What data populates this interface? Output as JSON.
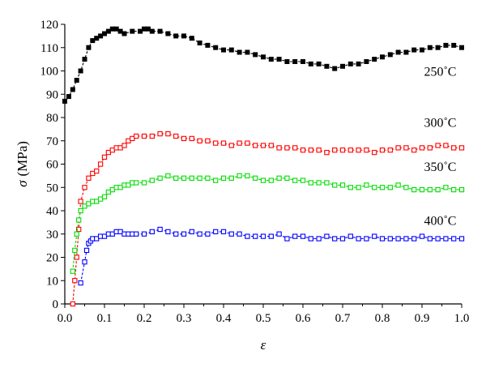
{
  "chart_data": {
    "type": "scatter",
    "title": "",
    "xlabel": "ε",
    "ylabel_symbol": "σ",
    "ylabel_unit": "(MPa)",
    "xlim": [
      0,
      1.0
    ],
    "ylim": [
      0,
      120
    ],
    "xticks": [
      "0.0",
      "0.1",
      "0.2",
      "0.3",
      "0.4",
      "0.5",
      "0.6",
      "0.7",
      "0.8",
      "0.9",
      "1.0"
    ],
    "yticks": [
      "0",
      "10",
      "20",
      "30",
      "40",
      "50",
      "60",
      "70",
      "80",
      "90",
      "100",
      "110",
      "120"
    ],
    "grid": false,
    "legend": "inline-right",
    "series": [
      {
        "name": "250˚C",
        "color": "#000000",
        "marker": "filled-square",
        "x": [
          0.0,
          0.01,
          0.02,
          0.03,
          0.04,
          0.05,
          0.06,
          0.07,
          0.08,
          0.09,
          0.1,
          0.11,
          0.12,
          0.13,
          0.14,
          0.15,
          0.17,
          0.19,
          0.2,
          0.21,
          0.22,
          0.24,
          0.26,
          0.28,
          0.3,
          0.32,
          0.34,
          0.36,
          0.38,
          0.4,
          0.42,
          0.44,
          0.46,
          0.48,
          0.5,
          0.52,
          0.54,
          0.56,
          0.58,
          0.6,
          0.62,
          0.64,
          0.66,
          0.68,
          0.7,
          0.72,
          0.74,
          0.76,
          0.78,
          0.8,
          0.82,
          0.84,
          0.86,
          0.88,
          0.9,
          0.92,
          0.94,
          0.96,
          0.98,
          1.0
        ],
        "y": [
          87,
          89,
          92,
          96,
          100,
          105,
          110,
          113,
          114,
          115,
          116,
          117,
          118,
          118,
          117,
          116,
          117,
          117,
          118,
          118,
          117,
          117,
          116,
          115,
          115,
          114,
          112,
          111,
          110,
          109,
          109,
          108,
          108,
          107,
          106,
          105,
          105,
          104,
          104,
          104,
          103,
          103,
          102,
          101,
          102,
          103,
          103,
          104,
          105,
          106,
          107,
          108,
          108,
          109,
          109,
          110,
          110,
          111,
          111,
          110
        ]
      },
      {
        "name": "300˚C",
        "color": "#ff0000",
        "marker": "open-square",
        "x": [
          0.02,
          0.025,
          0.03,
          0.035,
          0.04,
          0.05,
          0.06,
          0.07,
          0.08,
          0.09,
          0.1,
          0.11,
          0.12,
          0.13,
          0.14,
          0.15,
          0.16,
          0.17,
          0.18,
          0.2,
          0.22,
          0.24,
          0.26,
          0.28,
          0.3,
          0.32,
          0.34,
          0.36,
          0.38,
          0.4,
          0.42,
          0.44,
          0.46,
          0.48,
          0.5,
          0.52,
          0.54,
          0.56,
          0.58,
          0.6,
          0.62,
          0.64,
          0.66,
          0.68,
          0.7,
          0.72,
          0.74,
          0.76,
          0.78,
          0.8,
          0.82,
          0.84,
          0.86,
          0.88,
          0.9,
          0.92,
          0.94,
          0.96,
          0.98,
          1.0
        ],
        "y": [
          0,
          10,
          20,
          32,
          44,
          50,
          54,
          56,
          57,
          60,
          63,
          65,
          66,
          67,
          67,
          68,
          70,
          71,
          72,
          72,
          72,
          73,
          73,
          72,
          71,
          71,
          70,
          70,
          69,
          69,
          68,
          69,
          69,
          68,
          68,
          68,
          67,
          67,
          67,
          66,
          66,
          66,
          65,
          66,
          66,
          66,
          66,
          66,
          65,
          66,
          66,
          67,
          67,
          66,
          67,
          67,
          68,
          68,
          67,
          67
        ]
      },
      {
        "name": "350˚C",
        "color": "#00dd00",
        "marker": "open-square",
        "x": [
          0.02,
          0.025,
          0.03,
          0.035,
          0.04,
          0.05,
          0.06,
          0.07,
          0.08,
          0.09,
          0.1,
          0.11,
          0.12,
          0.13,
          0.14,
          0.15,
          0.16,
          0.17,
          0.18,
          0.2,
          0.22,
          0.24,
          0.26,
          0.28,
          0.3,
          0.32,
          0.34,
          0.36,
          0.38,
          0.4,
          0.42,
          0.44,
          0.46,
          0.48,
          0.5,
          0.52,
          0.54,
          0.56,
          0.58,
          0.6,
          0.62,
          0.64,
          0.66,
          0.68,
          0.7,
          0.72,
          0.74,
          0.76,
          0.78,
          0.8,
          0.82,
          0.84,
          0.86,
          0.88,
          0.9,
          0.92,
          0.94,
          0.96,
          0.98,
          1.0
        ],
        "y": [
          14,
          23,
          30,
          36,
          40,
          42,
          43,
          44,
          44,
          45,
          46,
          48,
          49,
          50,
          50,
          51,
          51,
          52,
          52,
          52,
          53,
          54,
          55,
          54,
          54,
          54,
          54,
          54,
          53,
          54,
          54,
          55,
          55,
          54,
          53,
          53,
          54,
          54,
          53,
          53,
          52,
          52,
          52,
          51,
          51,
          50,
          50,
          51,
          50,
          50,
          50,
          51,
          50,
          49,
          49,
          49,
          49,
          50,
          49,
          49
        ]
      },
      {
        "name": "400˚C",
        "color": "#0000ff",
        "marker": "open-square",
        "x": [
          0.04,
          0.05,
          0.055,
          0.06,
          0.065,
          0.07,
          0.08,
          0.09,
          0.1,
          0.11,
          0.12,
          0.13,
          0.14,
          0.15,
          0.16,
          0.17,
          0.18,
          0.2,
          0.22,
          0.24,
          0.26,
          0.28,
          0.3,
          0.32,
          0.34,
          0.36,
          0.38,
          0.4,
          0.42,
          0.44,
          0.46,
          0.48,
          0.5,
          0.52,
          0.54,
          0.56,
          0.58,
          0.6,
          0.62,
          0.64,
          0.66,
          0.68,
          0.7,
          0.72,
          0.74,
          0.76,
          0.78,
          0.8,
          0.82,
          0.84,
          0.86,
          0.88,
          0.9,
          0.92,
          0.94,
          0.96,
          0.98,
          1.0
        ],
        "y": [
          9,
          18,
          23,
          26,
          27,
          28,
          28,
          29,
          29,
          30,
          30,
          31,
          31,
          30,
          30,
          30,
          30,
          30,
          31,
          32,
          31,
          30,
          30,
          31,
          30,
          30,
          31,
          31,
          30,
          30,
          29,
          29,
          29,
          29,
          30,
          28,
          29,
          29,
          28,
          28,
          29,
          28,
          28,
          29,
          28,
          28,
          29,
          28,
          28,
          28,
          28,
          28,
          29,
          28,
          28,
          28,
          28,
          28
        ]
      }
    ],
    "annotations": [
      {
        "series": 0,
        "text": "250˚C",
        "x": 0.905,
        "y": 98
      },
      {
        "series": 1,
        "text": "300˚C",
        "x": 0.905,
        "y": 76
      },
      {
        "series": 2,
        "text": "350˚C",
        "x": 0.905,
        "y": 57
      },
      {
        "series": 3,
        "text": "400˚C",
        "x": 0.905,
        "y": 34
      }
    ]
  }
}
